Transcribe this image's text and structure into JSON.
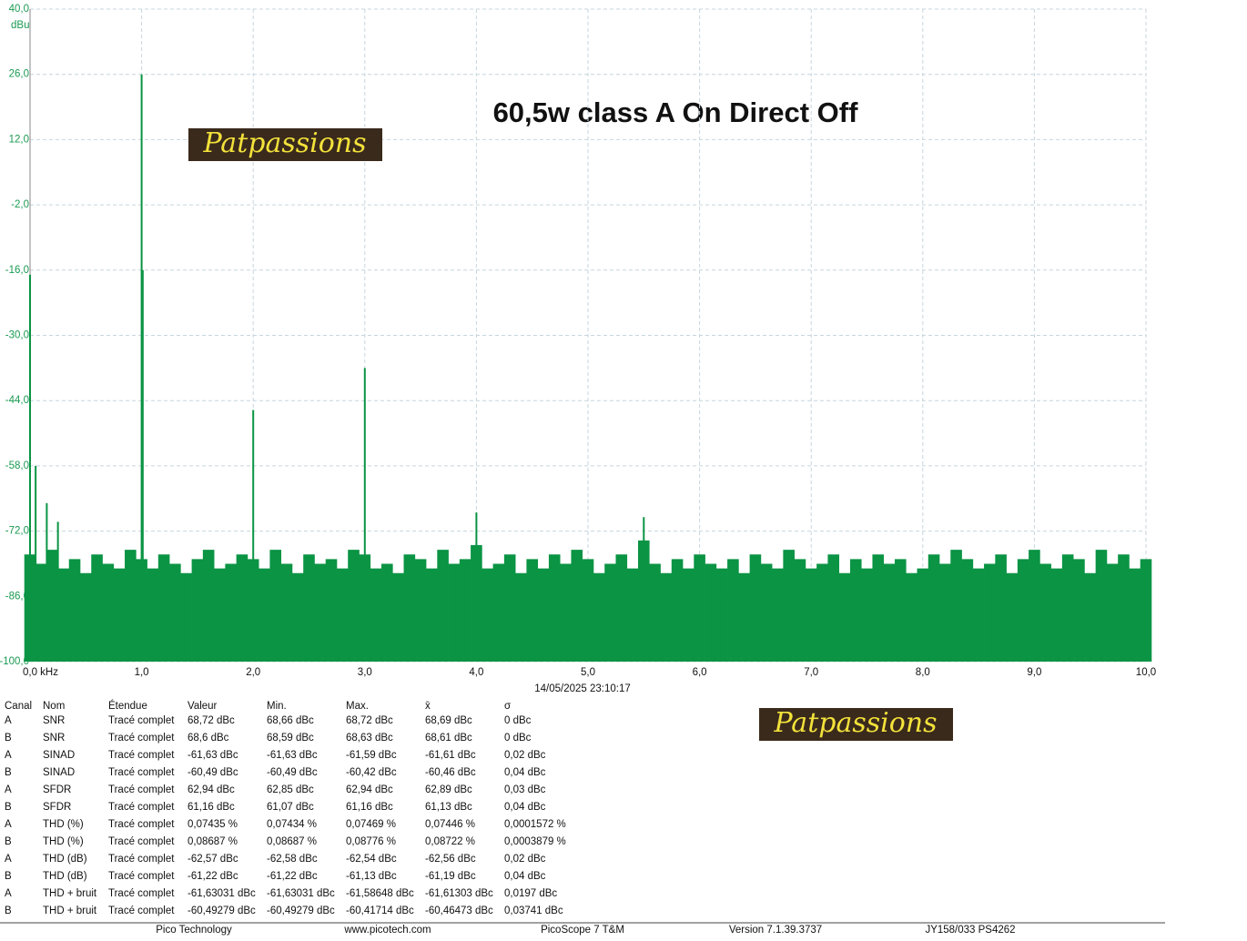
{
  "chart_data": {
    "type": "stem",
    "title": "60,5w class A On Direct Off",
    "y_unit": "dBu",
    "watermark": "Patpassions",
    "timestamp": "14/05/2025 23:10:17",
    "xlim": [
      0,
      10
    ],
    "ylim": [
      -100,
      40
    ],
    "grid": true,
    "xticks": [
      {
        "value": 0,
        "label": "0,0 kHz"
      },
      {
        "value": 1,
        "label": "1,0"
      },
      {
        "value": 2,
        "label": "2,0"
      },
      {
        "value": 3,
        "label": "3,0"
      },
      {
        "value": 4,
        "label": "4,0"
      },
      {
        "value": 5,
        "label": "5,0"
      },
      {
        "value": 6,
        "label": "6,0"
      },
      {
        "value": 7,
        "label": "7,0"
      },
      {
        "value": 8,
        "label": "8,0"
      },
      {
        "value": 9,
        "label": "9,0"
      },
      {
        "value": 10,
        "label": "10,0"
      }
    ],
    "yticks": [
      {
        "value": 40,
        "label": "40,0"
      },
      {
        "value": 26,
        "label": "26,0"
      },
      {
        "value": 12,
        "label": "12,0"
      },
      {
        "value": -2,
        "label": "-2,0"
      },
      {
        "value": -16,
        "label": "-16,0"
      },
      {
        "value": -30,
        "label": "-30,0"
      },
      {
        "value": -44,
        "label": "-44,0"
      },
      {
        "value": -58,
        "label": "-58,0"
      },
      {
        "value": -72,
        "label": "-72,0"
      },
      {
        "value": -86,
        "label": "-86,0"
      },
      {
        "value": -100,
        "label": "-100,0"
      }
    ],
    "series": [
      {
        "color": "#0a9444",
        "width": 12.6,
        "x": [
          0,
          0.1,
          0.2,
          0.3,
          0.4,
          0.5,
          0.6,
          0.7,
          0.8,
          0.9,
          1,
          1.1,
          1.2,
          1.3,
          1.4,
          1.5,
          1.6,
          1.7,
          1.8,
          1.9,
          2,
          2.1,
          2.2,
          2.3,
          2.4,
          2.5,
          2.6,
          2.7,
          2.8,
          2.9,
          3,
          3.1,
          3.2,
          3.3,
          3.4,
          3.5,
          3.6,
          3.7,
          3.8,
          3.9,
          4,
          4.1,
          4.2,
          4.3,
          4.4,
          4.5,
          4.6,
          4.7,
          4.8,
          4.9,
          5,
          5.1,
          5.2,
          5.3,
          5.4,
          5.5,
          5.6,
          5.7,
          5.8,
          5.9,
          6,
          6.1,
          6.2,
          6.3,
          6.4,
          6.5,
          6.6,
          6.7,
          6.8,
          6.9,
          7,
          7.1,
          7.2,
          7.3,
          7.4,
          7.5,
          7.6,
          7.7,
          7.8,
          7.9,
          8,
          8.1,
          8.2,
          8.3,
          8.4,
          8.5,
          8.6,
          8.7,
          8.8,
          8.9,
          9,
          9.1,
          9.2,
          9.3,
          9.4,
          9.5,
          9.6,
          9.7,
          9.8,
          9.9,
          10
        ],
        "values": [
          -77,
          -79,
          -76,
          -80,
          -78,
          -81,
          -77,
          -79,
          -80,
          -76,
          -78,
          -80,
          -77,
          -79,
          -81,
          -78,
          -76,
          -80,
          -79,
          -77,
          -78,
          -80,
          -76,
          -79,
          -81,
          -77,
          -79,
          -78,
          -80,
          -76,
          -77,
          -80,
          -79,
          -81,
          -77,
          -78,
          -80,
          -76,
          -79,
          -78,
          -75,
          -80,
          -79,
          -77,
          -81,
          -78,
          -80,
          -77,
          -79,
          -76,
          -78,
          -81,
          -79,
          -77,
          -80,
          -74,
          -79,
          -81,
          -78,
          -80,
          -77,
          -79,
          -80,
          -78,
          -81,
          -77,
          -79,
          -80,
          -76,
          -78,
          -80,
          -79,
          -77,
          -81,
          -78,
          -80,
          -77,
          -79,
          -78,
          -81,
          -80,
          -77,
          -79,
          -76,
          -78,
          -80,
          -79,
          -77,
          -81,
          -78,
          -76,
          -79,
          -80,
          -77,
          -78,
          -81,
          -76,
          -79,
          -77,
          -80,
          -78
        ]
      },
      {
        "color": "#0a9444",
        "width": 2,
        "x": [
          0,
          0.05,
          0.15,
          0.25,
          1.0,
          1.01,
          2.0,
          3.0,
          4.0,
          5.5
        ],
        "values": [
          -17,
          -58,
          -66,
          -70,
          26,
          -16,
          -46,
          -37,
          -68,
          -69
        ]
      }
    ]
  },
  "table": {
    "header": [
      "Canal",
      "Nom",
      "Étendue",
      "Valeur",
      "Min.",
      "Max.",
      "x̄",
      "σ"
    ],
    "rows": [
      [
        "A",
        "SNR",
        "Tracé complet",
        "68,72 dBc",
        "68,66 dBc",
        "68,72 dBc",
        "68,69 dBc",
        "0 dBc"
      ],
      [
        "B",
        "SNR",
        "Tracé complet",
        "68,6 dBc",
        "68,59 dBc",
        "68,63 dBc",
        "68,61 dBc",
        "0 dBc"
      ],
      [
        "A",
        "SINAD",
        "Tracé complet",
        "-61,63 dBc",
        "-61,63 dBc",
        "-61,59 dBc",
        "-61,61 dBc",
        "0,02 dBc"
      ],
      [
        "B",
        "SINAD",
        "Tracé complet",
        "-60,49 dBc",
        "-60,49 dBc",
        "-60,42 dBc",
        "-60,46 dBc",
        "0,04 dBc"
      ],
      [
        "A",
        "SFDR",
        "Tracé complet",
        "62,94 dBc",
        "62,85 dBc",
        "62,94 dBc",
        "62,89 dBc",
        "0,03 dBc"
      ],
      [
        "B",
        "SFDR",
        "Tracé complet",
        "61,16 dBc",
        "61,07 dBc",
        "61,16 dBc",
        "61,13 dBc",
        "0,04 dBc"
      ],
      [
        "A",
        "THD (%)",
        "Tracé complet",
        "0,07435 %",
        "0,07434 %",
        "0,07469 %",
        "0,07446 %",
        "0,0001572 %"
      ],
      [
        "B",
        "THD (%)",
        "Tracé complet",
        "0,08687 %",
        "0,08687 %",
        "0,08776 %",
        "0,08722 %",
        "0,0003879 %"
      ],
      [
        "A",
        "THD (dB)",
        "Tracé complet",
        "-62,57 dBc",
        "-62,58 dBc",
        "-62,54 dBc",
        "-62,56 dBc",
        "0,02 dBc"
      ],
      [
        "B",
        "THD (dB)",
        "Tracé complet",
        "-61,22 dBc",
        "-61,22 dBc",
        "-61,13 dBc",
        "-61,19 dBc",
        "0,04 dBc"
      ],
      [
        "A",
        "THD + bruit",
        "Tracé complet",
        "-61,63031 dBc",
        "-61,63031 dBc",
        "-61,58648 dBc",
        "-61,61303 dBc",
        "0,0197 dBc"
      ],
      [
        "B",
        "THD + bruit",
        "Tracé complet",
        "-60,49279 dBc",
        "-60,49279 dBc",
        "-60,41714 dBc",
        "-60,46473 dBc",
        "0,03741 dBc"
      ]
    ]
  },
  "footer": [
    "Pico Technology",
    "www.picotech.com",
    "PicoScope 7 T&M",
    "Version 7.1.39.3737",
    "JY158/033 PS4262"
  ]
}
